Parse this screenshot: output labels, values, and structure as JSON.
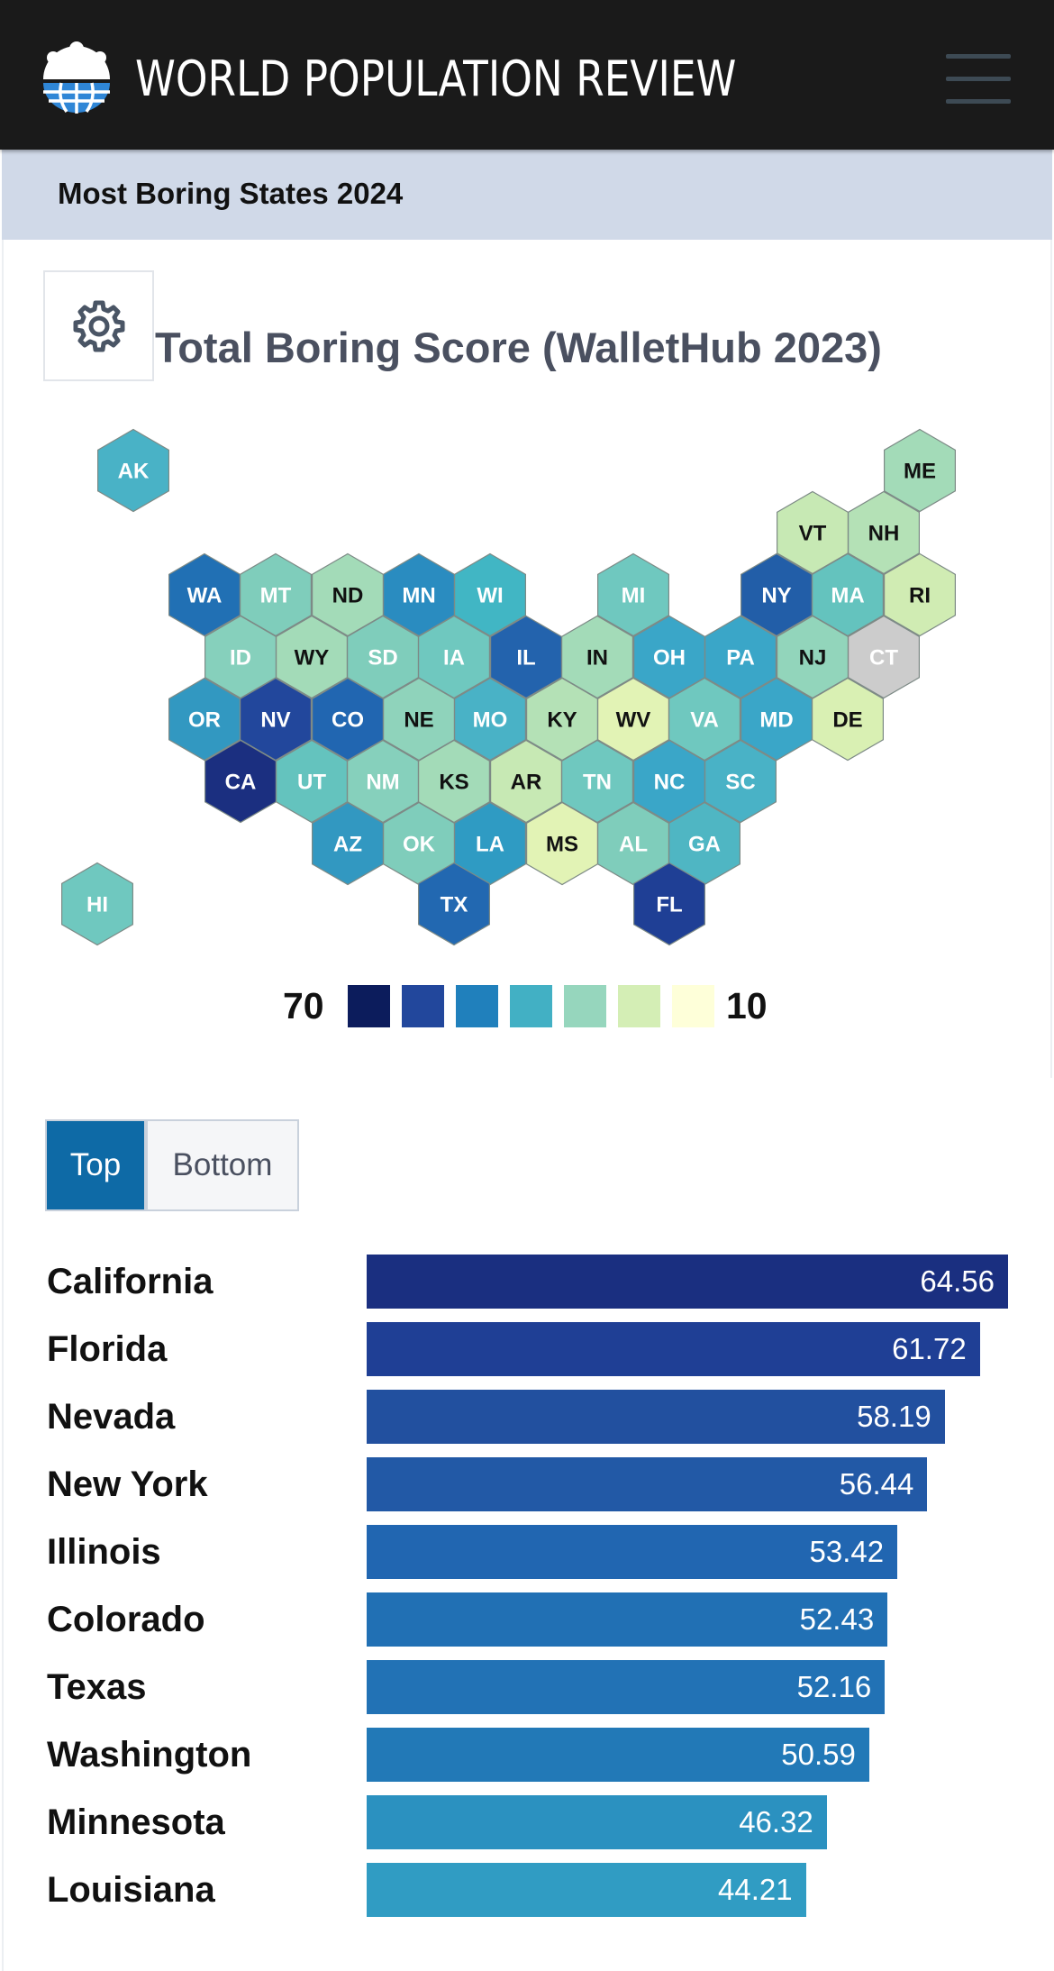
{
  "header": {
    "brand": "WORLD POPULATION REVIEW",
    "logo_icon": "globe-people-icon",
    "menu_icon": "hamburger-menu-icon"
  },
  "subheader": {
    "title": "Most Boring States 2024"
  },
  "map": {
    "settings_icon": "gear-icon",
    "title": "Total Boring Score (WalletHub 2023)",
    "states": [
      {
        "abbr": "AK",
        "color": "#49b2c6",
        "text": "#ffffff"
      },
      {
        "abbr": "ME",
        "color": "#a3dbb8",
        "text": "#111111"
      },
      {
        "abbr": "VT",
        "color": "#c7e9b4",
        "text": "#111111"
      },
      {
        "abbr": "NH",
        "color": "#b4e1b6",
        "text": "#111111"
      },
      {
        "abbr": "WA",
        "color": "#2170b4",
        "text": "#ffffff"
      },
      {
        "abbr": "MT",
        "color": "#7fcdbb",
        "text": "#ffffff"
      },
      {
        "abbr": "ND",
        "color": "#a3dbb8",
        "text": "#111111"
      },
      {
        "abbr": "MN",
        "color": "#2a8cc0",
        "text": "#ffffff"
      },
      {
        "abbr": "WI",
        "color": "#41b6c4",
        "text": "#ffffff"
      },
      {
        "abbr": "MI",
        "color": "#6fc8bf",
        "text": "#ffffff"
      },
      {
        "abbr": "NY",
        "color": "#225ea8",
        "text": "#ffffff"
      },
      {
        "abbr": "MA",
        "color": "#64c3be",
        "text": "#ffffff"
      },
      {
        "abbr": "RI",
        "color": "#d0ecb3",
        "text": "#111111"
      },
      {
        "abbr": "ID",
        "color": "#86d0bc",
        "text": "#ffffff"
      },
      {
        "abbr": "WY",
        "color": "#a3dbb8",
        "text": "#111111"
      },
      {
        "abbr": "SD",
        "color": "#7fcdbb",
        "text": "#ffffff"
      },
      {
        "abbr": "IA",
        "color": "#6fc8bf",
        "text": "#ffffff"
      },
      {
        "abbr": "IL",
        "color": "#2363ad",
        "text": "#ffffff"
      },
      {
        "abbr": "IN",
        "color": "#a3dbb8",
        "text": "#111111"
      },
      {
        "abbr": "OH",
        "color": "#3aa6c8",
        "text": "#ffffff"
      },
      {
        "abbr": "PA",
        "color": "#3aa6c8",
        "text": "#ffffff"
      },
      {
        "abbr": "NJ",
        "color": "#92d5bb",
        "text": "#111111"
      },
      {
        "abbr": "CT",
        "color": "#cccccc",
        "text": "#ffffff"
      },
      {
        "abbr": "OR",
        "color": "#3298c1",
        "text": "#ffffff"
      },
      {
        "abbr": "NV",
        "color": "#22479c",
        "text": "#ffffff"
      },
      {
        "abbr": "CO",
        "color": "#2166b1",
        "text": "#ffffff"
      },
      {
        "abbr": "NE",
        "color": "#8fd3bb",
        "text": "#111111"
      },
      {
        "abbr": "MO",
        "color": "#49b2c6",
        "text": "#ffffff"
      },
      {
        "abbr": "KY",
        "color": "#b4e1b6",
        "text": "#111111"
      },
      {
        "abbr": "WV",
        "color": "#e2f3b5",
        "text": "#111111"
      },
      {
        "abbr": "VA",
        "color": "#6fc8bf",
        "text": "#ffffff"
      },
      {
        "abbr": "MD",
        "color": "#3aa6c8",
        "text": "#ffffff"
      },
      {
        "abbr": "DE",
        "color": "#d9f0b3",
        "text": "#111111"
      },
      {
        "abbr": "CA",
        "color": "#1b2f80",
        "text": "#ffffff"
      },
      {
        "abbr": "UT",
        "color": "#64c3be",
        "text": "#ffffff"
      },
      {
        "abbr": "NM",
        "color": "#86d0bc",
        "text": "#ffffff"
      },
      {
        "abbr": "KS",
        "color": "#a3dbb8",
        "text": "#111111"
      },
      {
        "abbr": "AR",
        "color": "#c7e9b4",
        "text": "#111111"
      },
      {
        "abbr": "TN",
        "color": "#6fc8bf",
        "text": "#ffffff"
      },
      {
        "abbr": "NC",
        "color": "#3aa6c8",
        "text": "#ffffff"
      },
      {
        "abbr": "SC",
        "color": "#49b2c6",
        "text": "#ffffff"
      },
      {
        "abbr": "AZ",
        "color": "#3298c1",
        "text": "#ffffff"
      },
      {
        "abbr": "OK",
        "color": "#7fcdbb",
        "text": "#ffffff"
      },
      {
        "abbr": "LA",
        "color": "#2f9bc3",
        "text": "#ffffff"
      },
      {
        "abbr": "MS",
        "color": "#e2f3b5",
        "text": "#111111"
      },
      {
        "abbr": "AL",
        "color": "#7fcdbb",
        "text": "#ffffff"
      },
      {
        "abbr": "GA",
        "color": "#4fb6c3",
        "text": "#ffffff"
      },
      {
        "abbr": "HI",
        "color": "#6fc8bf",
        "text": "#ffffff"
      },
      {
        "abbr": "TX",
        "color": "#2268b1",
        "text": "#ffffff"
      },
      {
        "abbr": "FL",
        "color": "#1f3f95",
        "text": "#ffffff"
      }
    ],
    "legend": {
      "max_label": "70",
      "min_label": "10",
      "colors": [
        "#0c1c5c",
        "#22479c",
        "#2080bc",
        "#42b0c4",
        "#96d6bd",
        "#d4eeb5",
        "#feffd9"
      ]
    }
  },
  "tabs": {
    "top": "Top",
    "bottom": "Bottom",
    "active": "Top"
  },
  "chart_data": {
    "type": "bar",
    "title": "",
    "categories": [
      "California",
      "Florida",
      "Nevada",
      "New York",
      "Illinois",
      "Colorado",
      "Texas",
      "Washington",
      "Minnesota",
      "Louisiana"
    ],
    "values": [
      64.56,
      61.72,
      58.19,
      56.44,
      53.42,
      52.43,
      52.16,
      50.59,
      46.32,
      44.21
    ],
    "value_labels": [
      "64.56",
      "61.72",
      "58.19",
      "56.44",
      "53.42",
      "52.43",
      "52.16",
      "50.59",
      "46.32",
      "44.21"
    ],
    "colors": [
      "#1a2f80",
      "#1f3f95",
      "#22509f",
      "#2259a6",
      "#2166b1",
      "#2170b4",
      "#2272b5",
      "#2279b7",
      "#2b91c0",
      "#309cc3"
    ],
    "xlim": [
      0,
      64.56
    ]
  }
}
